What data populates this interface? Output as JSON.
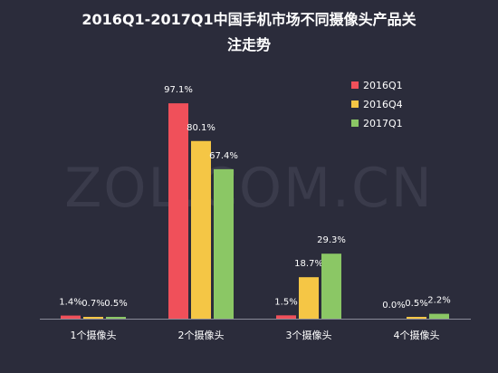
{
  "chart_data": {
    "type": "bar",
    "title_lines": [
      "2016Q1-2017Q1中国手机市场不同摄像头产品关",
      "注走势"
    ],
    "categories": [
      "1个摄像头",
      "2个摄像头",
      "3个摄像头",
      "4个摄像头"
    ],
    "series": [
      {
        "name": "2016Q1",
        "color": "#f0505a",
        "values": [
          1.4,
          97.1,
          1.5,
          0.0
        ],
        "labels": [
          "1.4%",
          "97.1%",
          "1.5%",
          "0.0%"
        ]
      },
      {
        "name": "2016Q4",
        "color": "#f5c645",
        "values": [
          0.7,
          80.1,
          18.7,
          0.5
        ],
        "labels": [
          "0.7%",
          "80.1%",
          "18.7%",
          "0.5%"
        ]
      },
      {
        "name": "2017Q1",
        "color": "#8bc765",
        "values": [
          0.5,
          67.4,
          29.3,
          2.2
        ],
        "labels": [
          "0.5%",
          "67.4%",
          "29.3%",
          "2.2%"
        ]
      }
    ],
    "ylim": [
      0,
      100
    ],
    "legend_position": "top-right",
    "grid": false
  },
  "watermark": "ZOL.COM.CN",
  "colors": {
    "background": "#2b2c3b",
    "axis": "#8a8b99"
  }
}
